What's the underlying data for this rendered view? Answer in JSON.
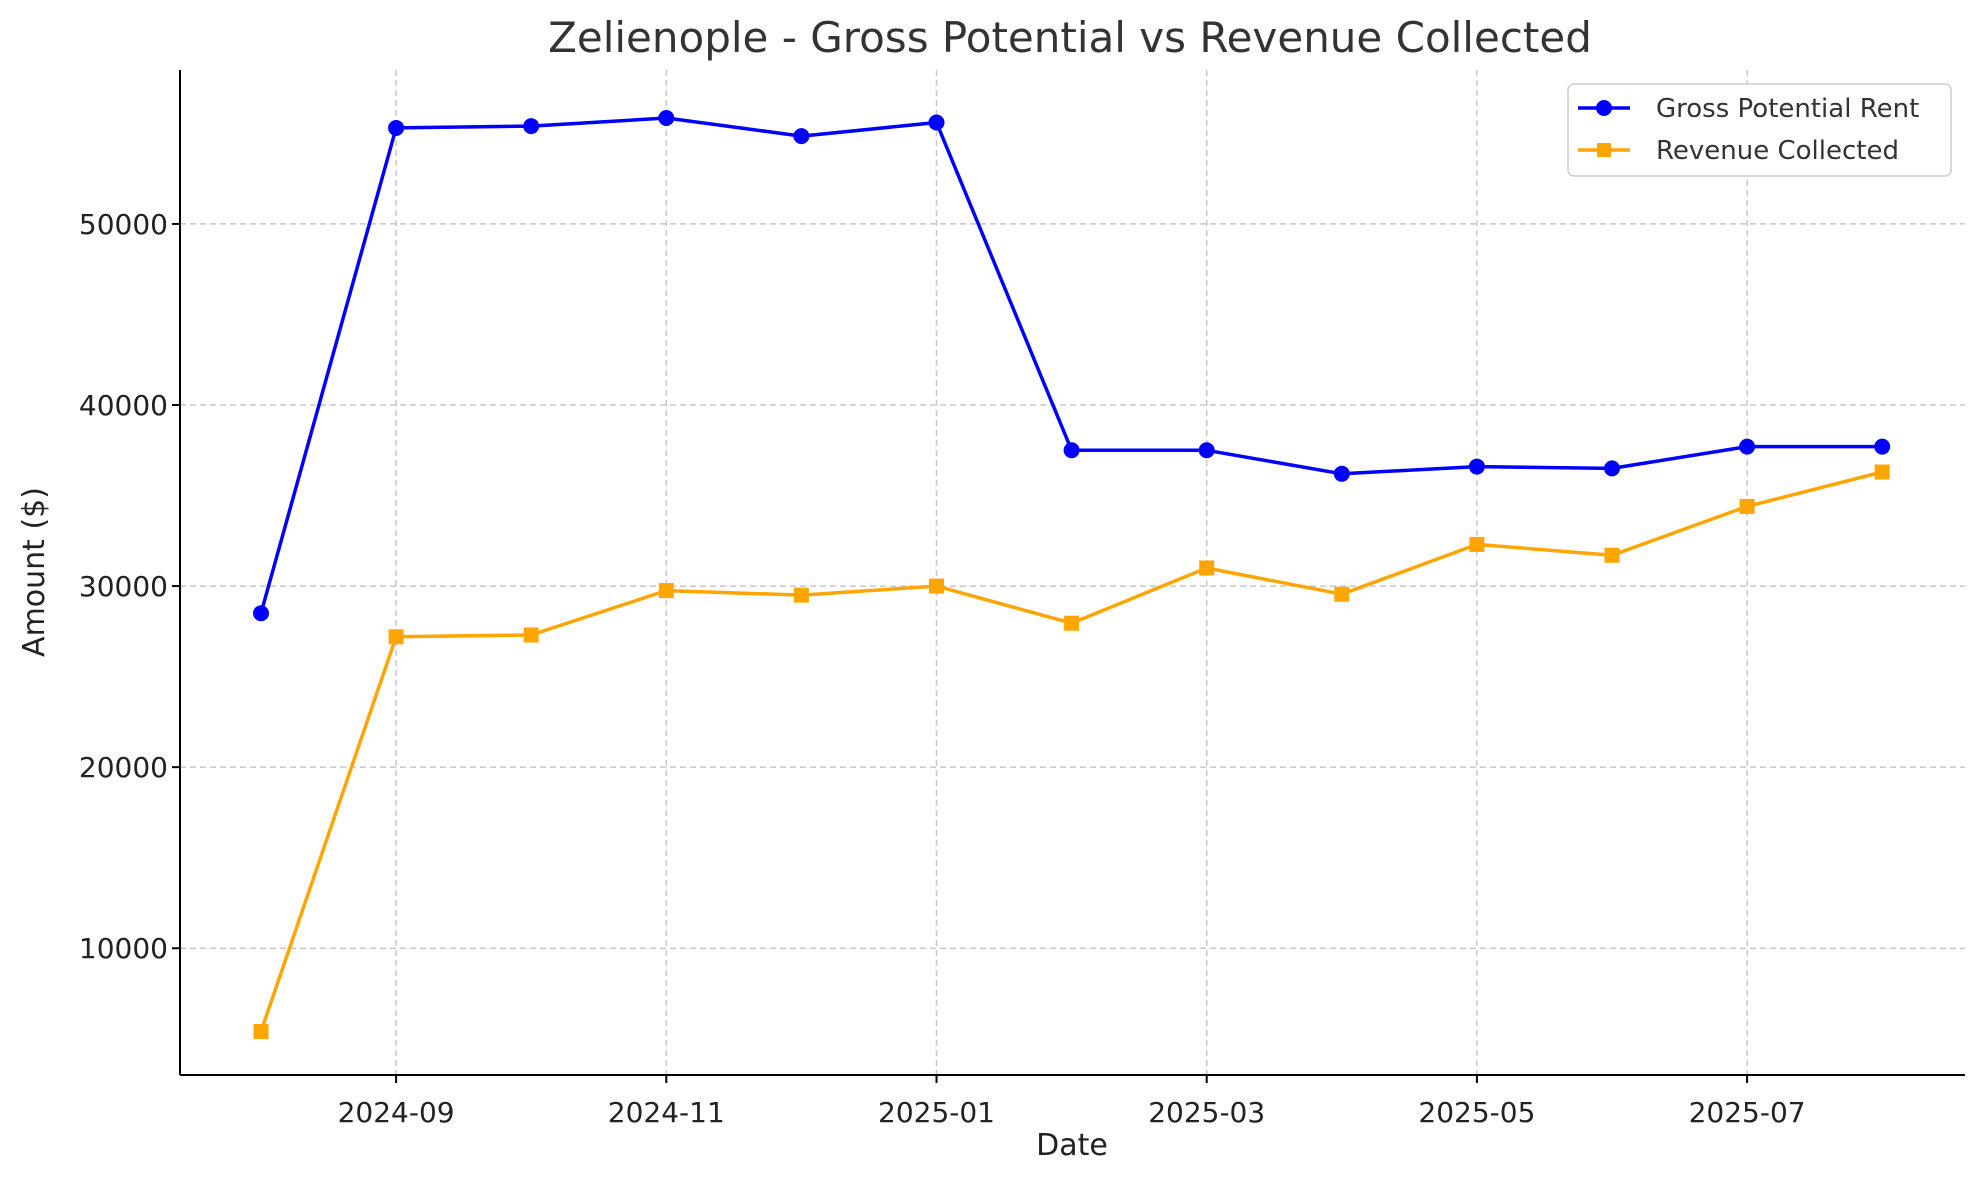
{
  "chart_data": {
    "type": "line",
    "title": "Zelienople - Gross Potential vs Revenue Collected",
    "xlabel": "Date",
    "ylabel": "Amount ($)",
    "x": [
      "2024-08",
      "2024-09",
      "2024-10",
      "2024-11",
      "2024-12",
      "2025-01",
      "2025-02",
      "2025-03",
      "2025-04",
      "2025-05",
      "2025-06",
      "2025-07",
      "2025-08"
    ],
    "x_ticks": [
      "2024-09",
      "2024-11",
      "2025-01",
      "2025-03",
      "2025-05",
      "2025-07"
    ],
    "y_ticks": [
      10000,
      20000,
      30000,
      40000,
      50000
    ],
    "ylim": [
      3000,
      58500
    ],
    "grid": true,
    "legend_position": "top-right",
    "series": [
      {
        "name": "Gross Potential Rent",
        "color": "#0000ff",
        "marker": "circle",
        "values": [
          28500,
          55300,
          55400,
          55850,
          54850,
          55600,
          37500,
          37500,
          36200,
          36600,
          36500,
          37700,
          37700
        ]
      },
      {
        "name": "Revenue Collected",
        "color": "#ffa500",
        "marker": "square",
        "values": [
          5400,
          27200,
          27300,
          29750,
          29500,
          30000,
          27950,
          31000,
          29550,
          32300,
          31700,
          34400,
          36300
        ]
      }
    ]
  }
}
